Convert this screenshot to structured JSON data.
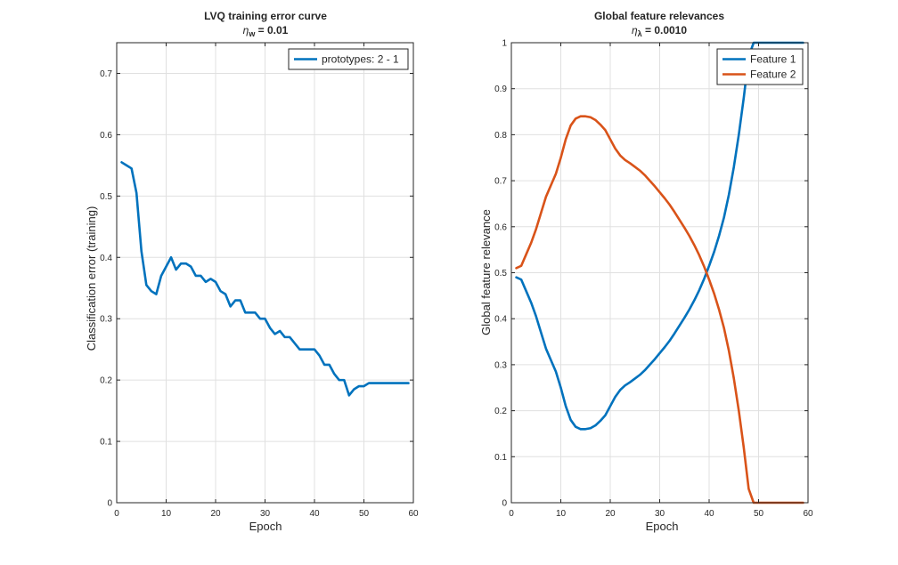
{
  "figure": {
    "colors": {
      "series1": "#0072BD",
      "series2": "#D95319",
      "axis": "#262626",
      "grid": "#e0e0e0"
    }
  },
  "chart_data": [
    {
      "type": "line",
      "title": "LVQ training error curve",
      "subtitle": {
        "eta_symbol": "η",
        "eta_subscript": "w",
        "value_text": " = 0.01"
      },
      "xlabel": "Epoch",
      "ylabel": "Classification error (training)",
      "xlim": [
        0,
        60
      ],
      "ylim": [
        0,
        0.75
      ],
      "xticks": [
        0,
        10,
        20,
        30,
        40,
        50,
        60
      ],
      "xtick_labels": [
        "0",
        "10",
        "20",
        "30",
        "40",
        "50",
        "60"
      ],
      "yticks": [
        0,
        0.1,
        0.2,
        0.3,
        0.4,
        0.5,
        0.6,
        0.7
      ],
      "ytick_labels": [
        "0",
        "0.1",
        "0.2",
        "0.3",
        "0.4",
        "0.5",
        "0.6",
        "0.7"
      ],
      "grid": true,
      "legend_location": "top-right",
      "series": [
        {
          "name": "prototypes: 2 - 1",
          "color": "#0072BD",
          "x": [
            1,
            2,
            3,
            4,
            5,
            6,
            7,
            8,
            9,
            10,
            11,
            12,
            13,
            14,
            15,
            16,
            17,
            18,
            19,
            20,
            21,
            22,
            23,
            24,
            25,
            26,
            27,
            28,
            29,
            30,
            31,
            32,
            33,
            34,
            35,
            36,
            37,
            38,
            39,
            40,
            41,
            42,
            43,
            44,
            45,
            46,
            47,
            48,
            49,
            50,
            51,
            52,
            53,
            54,
            55,
            56,
            57,
            58,
            59
          ],
          "y": [
            0.555,
            0.55,
            0.545,
            0.505,
            0.41,
            0.355,
            0.345,
            0.34,
            0.37,
            0.385,
            0.4,
            0.38,
            0.39,
            0.39,
            0.385,
            0.37,
            0.37,
            0.36,
            0.365,
            0.36,
            0.345,
            0.34,
            0.32,
            0.33,
            0.33,
            0.31,
            0.31,
            0.31,
            0.3,
            0.3,
            0.285,
            0.275,
            0.28,
            0.27,
            0.27,
            0.26,
            0.25,
            0.25,
            0.25,
            0.25,
            0.24,
            0.225,
            0.225,
            0.21,
            0.2,
            0.2,
            0.175,
            0.185,
            0.19,
            0.19,
            0.195,
            0.195,
            0.195,
            0.195,
            0.195,
            0.195,
            0.195,
            0.195,
            0.195
          ]
        }
      ]
    },
    {
      "type": "line",
      "title": "Global feature relevances",
      "subtitle": {
        "eta_symbol": "η",
        "eta_subscript": "λ",
        "value_text": " = 0.0010"
      },
      "xlabel": "Epoch",
      "ylabel": "Global feature relevance",
      "xlim": [
        0,
        60
      ],
      "ylim": [
        0,
        1
      ],
      "xticks": [
        0,
        10,
        20,
        30,
        40,
        50,
        60
      ],
      "xtick_labels": [
        "0",
        "10",
        "20",
        "30",
        "40",
        "50",
        "60"
      ],
      "yticks": [
        0,
        0.1,
        0.2,
        0.3,
        0.4,
        0.5,
        0.6,
        0.7,
        0.8,
        0.9,
        1
      ],
      "ytick_labels": [
        "0",
        "0.1",
        "0.2",
        "0.3",
        "0.4",
        "0.5",
        "0.6",
        "0.7",
        "0.8",
        "0.9",
        "1"
      ],
      "grid": true,
      "legend_location": "top-right",
      "series": [
        {
          "name": "Feature 1",
          "color": "#0072BD",
          "x": [
            1,
            2,
            3,
            4,
            5,
            6,
            7,
            8,
            9,
            10,
            11,
            12,
            13,
            14,
            15,
            16,
            17,
            18,
            19,
            20,
            21,
            22,
            23,
            24,
            25,
            26,
            27,
            28,
            29,
            30,
            31,
            32,
            33,
            34,
            35,
            36,
            37,
            38,
            39,
            40,
            41,
            42,
            43,
            44,
            45,
            46,
            47,
            48,
            49,
            50,
            51,
            52,
            53,
            54,
            55,
            56,
            57,
            58,
            59
          ],
          "y": [
            0.49,
            0.485,
            0.46,
            0.435,
            0.405,
            0.37,
            0.335,
            0.31,
            0.285,
            0.25,
            0.21,
            0.18,
            0.165,
            0.16,
            0.16,
            0.162,
            0.168,
            0.178,
            0.19,
            0.21,
            0.23,
            0.245,
            0.255,
            0.262,
            0.27,
            0.278,
            0.288,
            0.3,
            0.312,
            0.325,
            0.338,
            0.352,
            0.368,
            0.385,
            0.402,
            0.42,
            0.44,
            0.462,
            0.487,
            0.515,
            0.545,
            0.58,
            0.62,
            0.67,
            0.73,
            0.8,
            0.88,
            0.97,
            1.0,
            1.0,
            1.0,
            1.0,
            1.0,
            1.0,
            1.0,
            1.0,
            1.0,
            1.0,
            1.0
          ]
        },
        {
          "name": "Feature 2",
          "color": "#D95319",
          "x": [
            1,
            2,
            3,
            4,
            5,
            6,
            7,
            8,
            9,
            10,
            11,
            12,
            13,
            14,
            15,
            16,
            17,
            18,
            19,
            20,
            21,
            22,
            23,
            24,
            25,
            26,
            27,
            28,
            29,
            30,
            31,
            32,
            33,
            34,
            35,
            36,
            37,
            38,
            39,
            40,
            41,
            42,
            43,
            44,
            45,
            46,
            47,
            48,
            49,
            50,
            51,
            52,
            53,
            54,
            55,
            56,
            57,
            58,
            59
          ],
          "y": [
            0.51,
            0.515,
            0.54,
            0.565,
            0.595,
            0.63,
            0.665,
            0.69,
            0.715,
            0.75,
            0.79,
            0.82,
            0.835,
            0.84,
            0.84,
            0.838,
            0.832,
            0.822,
            0.81,
            0.79,
            0.77,
            0.755,
            0.745,
            0.738,
            0.73,
            0.722,
            0.712,
            0.7,
            0.688,
            0.675,
            0.662,
            0.648,
            0.632,
            0.615,
            0.598,
            0.58,
            0.56,
            0.538,
            0.513,
            0.485,
            0.455,
            0.42,
            0.38,
            0.33,
            0.27,
            0.2,
            0.12,
            0.03,
            0.0,
            0.0,
            0.0,
            0.0,
            0.0,
            0.0,
            0.0,
            0.0,
            0.0,
            0.0,
            0.0
          ]
        }
      ]
    }
  ]
}
